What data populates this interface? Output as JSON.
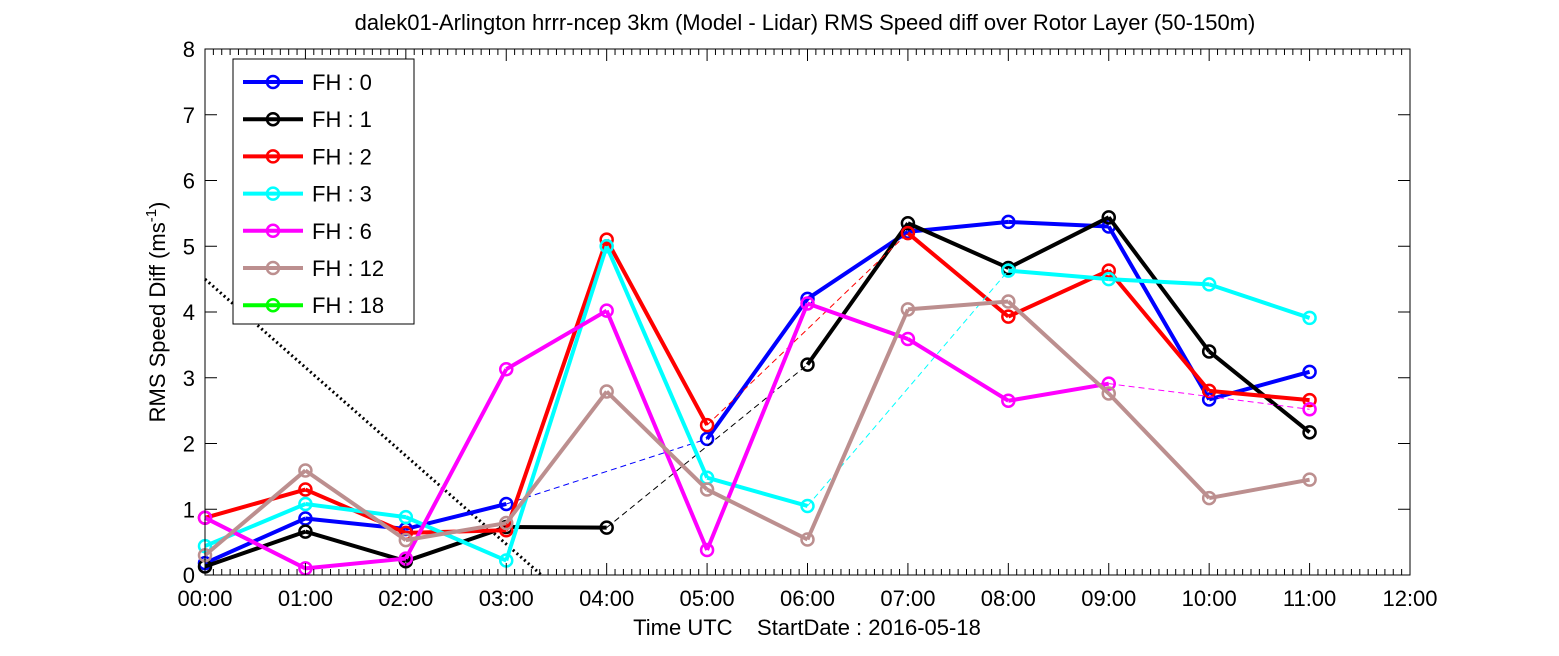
{
  "chart_data": {
    "type": "line",
    "title": "dalek01-Arlington hrrr-ncep 3km (Model - Lidar) RMS Speed diff over Rotor Layer (50-150m)",
    "ylabel": "RMS Speed Diff (ms",
    "ylabel_sup": "-1",
    "ylabel_end": ")",
    "xlabel": "Time UTC    StartDate : 2016-05-18",
    "xlim": [
      0,
      12
    ],
    "ylim": [
      0,
      8
    ],
    "x_ticks": [
      0,
      1,
      2,
      3,
      4,
      5,
      6,
      7,
      8,
      9,
      10,
      11,
      12
    ],
    "x_tick_labels": [
      "00:00",
      "01:00",
      "02:00",
      "03:00",
      "04:00",
      "05:00",
      "06:00",
      "07:00",
      "08:00",
      "09:00",
      "10:00",
      "11:00",
      "12:00"
    ],
    "y_ticks": [
      0,
      1,
      2,
      3,
      4,
      5,
      6,
      7,
      8
    ],
    "y_tick_labels": [
      "0",
      "1",
      "2",
      "3",
      "4",
      "5",
      "6",
      "7",
      "8"
    ],
    "legend_position": "top-left",
    "series": [
      {
        "name": "FH : 0",
        "color": "#0000ff",
        "points": [
          [
            0,
            0.18
          ],
          [
            1,
            0.86
          ],
          [
            2,
            0.7
          ],
          [
            3,
            1.08
          ],
          [
            5,
            2.07
          ],
          [
            6,
            4.2
          ],
          [
            7,
            5.22
          ],
          [
            8,
            5.37
          ],
          [
            9,
            5.3
          ],
          [
            10,
            2.67
          ],
          [
            11,
            3.09
          ]
        ]
      },
      {
        "name": "FH : 1",
        "color": "#000000",
        "points": [
          [
            0,
            0.13
          ],
          [
            1,
            0.66
          ],
          [
            2,
            0.21
          ],
          [
            3,
            0.73
          ],
          [
            4,
            0.72
          ],
          [
            6,
            3.2
          ],
          [
            7,
            5.35
          ],
          [
            8,
            4.67
          ],
          [
            9,
            5.44
          ],
          [
            10,
            3.4
          ],
          [
            11,
            2.17
          ]
        ]
      },
      {
        "name": "FH : 2",
        "color": "#ff0000",
        "points": [
          [
            0,
            0.87
          ],
          [
            1,
            1.3
          ],
          [
            2,
            0.64
          ],
          [
            3,
            0.68
          ],
          [
            4,
            5.1
          ],
          [
            5,
            2.28
          ],
          [
            7,
            5.2
          ],
          [
            8,
            3.93
          ],
          [
            9,
            4.63
          ],
          [
            10,
            2.8
          ],
          [
            11,
            2.66
          ]
        ]
      },
      {
        "name": "FH : 3",
        "color": "#00ffff",
        "points": [
          [
            0,
            0.44
          ],
          [
            1,
            1.08
          ],
          [
            2,
            0.88
          ],
          [
            3,
            0.22
          ],
          [
            4,
            5.0
          ],
          [
            5,
            1.48
          ],
          [
            6,
            1.05
          ],
          [
            8,
            4.63
          ],
          [
            9,
            4.5
          ],
          [
            10,
            4.42
          ],
          [
            11,
            3.91
          ]
        ]
      },
      {
        "name": "FH : 6",
        "color": "#ff00ff",
        "points": [
          [
            0,
            0.87
          ],
          [
            1,
            0.1
          ],
          [
            2,
            0.25
          ],
          [
            3,
            3.13
          ],
          [
            4,
            4.02
          ],
          [
            5,
            0.38
          ],
          [
            6,
            4.13
          ],
          [
            7,
            3.59
          ],
          [
            8,
            2.65
          ],
          [
            9,
            2.91
          ],
          [
            11,
            2.52
          ]
        ]
      },
      {
        "name": "FH : 12",
        "color": "#bc8f8f",
        "points": [
          [
            0,
            0.3
          ],
          [
            1,
            1.59
          ],
          [
            2,
            0.53
          ],
          [
            3,
            0.79
          ],
          [
            4,
            2.79
          ],
          [
            5,
            1.3
          ],
          [
            6,
            0.54
          ],
          [
            7,
            4.04
          ],
          [
            8,
            4.16
          ],
          [
            9,
            2.76
          ],
          [
            10,
            1.17
          ],
          [
            11,
            1.45
          ]
        ]
      },
      {
        "name": "FH : 18",
        "color": "#00ff00",
        "points": []
      }
    ],
    "dotted_line": {
      "points": [
        [
          0,
          4.5
        ],
        [
          3.35,
          0
        ]
      ],
      "color": "#000000"
    }
  }
}
